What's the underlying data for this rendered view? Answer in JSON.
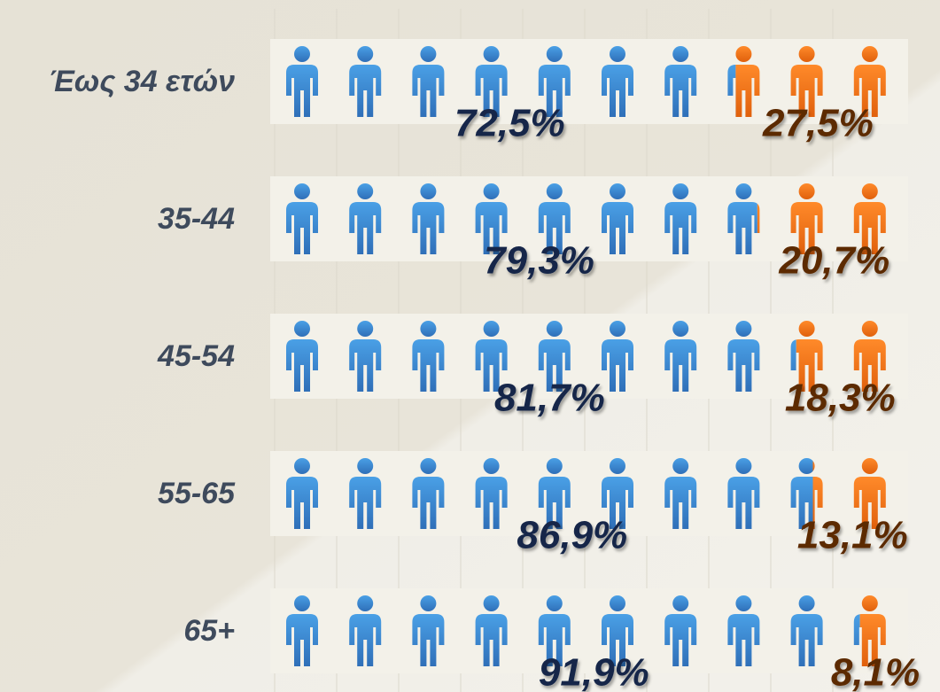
{
  "chart_data": {
    "type": "pictograph",
    "categories": [
      "Έως 34 ετών",
      "35-44",
      "45-54",
      "55-65",
      "65+"
    ],
    "series": [
      {
        "color": "#3d8fd8",
        "values": [
          72.5,
          79.3,
          81.7,
          86.9,
          91.9
        ],
        "value_labels": [
          "72,5%",
          "79,3%",
          "81,7%",
          "86,9%",
          "91,9%"
        ]
      },
      {
        "color": "#f0771a",
        "values": [
          27.5,
          20.7,
          18.3,
          13.1,
          8.1
        ],
        "value_labels": [
          "27,5%",
          "20,7%",
          "18,3%",
          "13,1%",
          "8,1%"
        ]
      }
    ]
  }
}
